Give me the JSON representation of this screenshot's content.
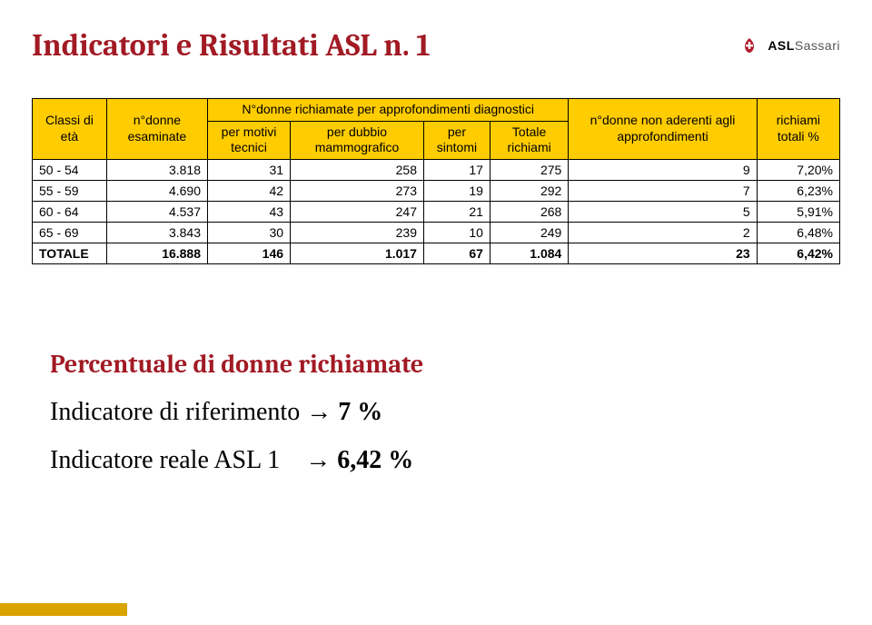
{
  "title": "Indicatori e Risultati ASL n. 1",
  "logo": {
    "brand": "ASL",
    "suffix": "Sassari"
  },
  "table": {
    "header": {
      "col0": "Classi di età",
      "col1": "n°donne esaminate",
      "group": "N°donne richiamate per approfondimenti diagnostici",
      "sub2": "per motivi tecnici",
      "sub3": "per dubbio mammografico",
      "sub4": "per sintomi",
      "sub5": "Totale richiami",
      "col6": "n°donne non aderenti agli approfondimenti",
      "col7": "richiami totali %"
    },
    "rows": [
      {
        "c0": "50 - 54",
        "c1": "3.818",
        "c2": "31",
        "c3": "258",
        "c4": "17",
        "c5": "275",
        "c6": "9",
        "c7": "7,20%"
      },
      {
        "c0": "55 - 59",
        "c1": "4.690",
        "c2": "42",
        "c3": "273",
        "c4": "19",
        "c5": "292",
        "c6": "7",
        "c7": "6,23%"
      },
      {
        "c0": "60 - 64",
        "c1": "4.537",
        "c2": "43",
        "c3": "247",
        "c4": "21",
        "c5": "268",
        "c6": "5",
        "c7": "5,91%"
      },
      {
        "c0": "65 - 69",
        "c1": "3.843",
        "c2": "30",
        "c3": "239",
        "c4": "10",
        "c5": "249",
        "c6": "2",
        "c7": "6,48%"
      }
    ],
    "total": {
      "c0": "TOTALE",
      "c1": "16.888",
      "c2": "146",
      "c3": "1.017",
      "c4": "67",
      "c5": "1.084",
      "c6": "23",
      "c7": "6,42%"
    }
  },
  "sub": {
    "heading": "Percentuale di donne richiamate",
    "ref_label": "Indicatore di riferimento",
    "ref_value": "7 %",
    "real_label": "Indicatore reale ASL 1",
    "real_value": "6,42 %",
    "arrow": "→"
  },
  "colors": {
    "heading": "#a11a24",
    "table_header_bg": "#ffcc00",
    "stripe": "#d9a300"
  }
}
